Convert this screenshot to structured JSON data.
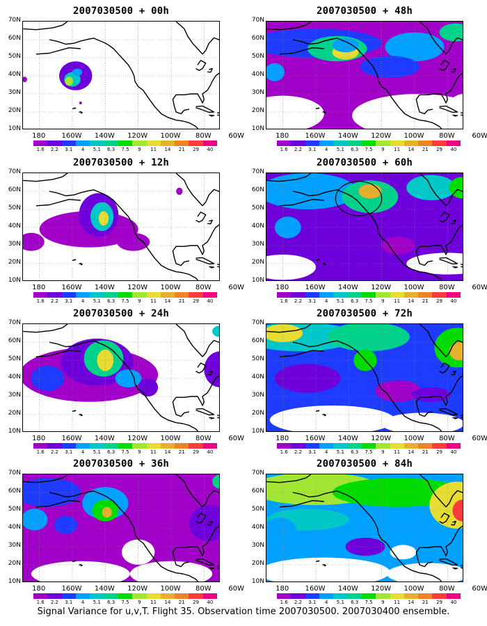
{
  "panels": [
    {
      "title": "2007030500 + 00h",
      "lead": 0
    },
    {
      "title": "2007030500 + 48h",
      "lead": 48
    },
    {
      "title": "2007030500 + 12h",
      "lead": 12
    },
    {
      "title": "2007030500 + 60h",
      "lead": 60
    },
    {
      "title": "2007030500 + 24h",
      "lead": 24
    },
    {
      "title": "2007030500 + 72h",
      "lead": 72
    },
    {
      "title": "2007030500 + 36h",
      "lead": 36
    },
    {
      "title": "2007030500 + 84h",
      "lead": 84
    }
  ],
  "lat_labels": [
    "70N",
    "60N",
    "50N",
    "40N",
    "30N",
    "20N",
    "10N"
  ],
  "lon_labels": [
    "180",
    "160W",
    "140W",
    "120W",
    "100W",
    "80W",
    "60W"
  ],
  "colorbar": {
    "colors": [
      "#a000c8",
      "#6e00dc",
      "#1e3cff",
      "#00a0ff",
      "#00c8c8",
      "#00d28c",
      "#00dc00",
      "#a0e632",
      "#e6dc32",
      "#e6af2d",
      "#f08228",
      "#fa3c3c",
      "#f00082"
    ],
    "labels": [
      "1.6",
      "2.2",
      "3.1",
      "4",
      "5.1",
      "6.3",
      "7.5",
      "9",
      "11",
      "14",
      "21",
      "29",
      "40"
    ]
  },
  "caption": "Signal Variance for u,v,T. Flight 35. Observation time 2007030500. 2007030400 ensemble."
}
